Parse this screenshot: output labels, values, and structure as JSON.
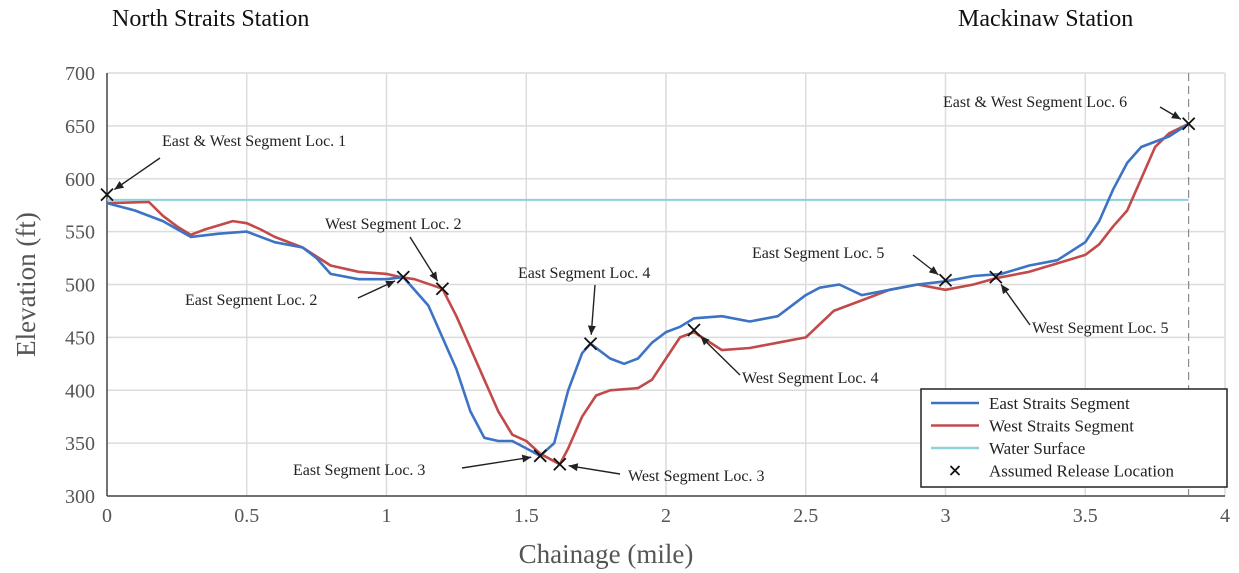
{
  "stations": {
    "left": "North Straits Station",
    "right": "Mackinaw Station"
  },
  "chart_data": {
    "type": "line",
    "xlabel": "Chainage (mile)",
    "ylabel": "Elevation (ft)",
    "xlim": [
      0,
      4
    ],
    "ylim": [
      300,
      700
    ],
    "xticks": [
      "0",
      "0.5",
      "1",
      "1.5",
      "2",
      "2.5",
      "3",
      "3.5",
      "4"
    ],
    "yticks": [
      "300",
      "350",
      "400",
      "450",
      "500",
      "550",
      "600",
      "650",
      "700"
    ],
    "grid": true,
    "legend_position": "bottom-right",
    "series": [
      {
        "name": "East Straits Segment",
        "color": "#3c73c4",
        "x": [
          0,
          0.1,
          0.2,
          0.3,
          0.4,
          0.5,
          0.6,
          0.7,
          0.75,
          0.8,
          0.9,
          1.0,
          1.06,
          1.15,
          1.25,
          1.3,
          1.35,
          1.4,
          1.45,
          1.5,
          1.55,
          1.6,
          1.65,
          1.7,
          1.73,
          1.8,
          1.85,
          1.9,
          1.95,
          2.0,
          2.05,
          2.1,
          2.2,
          2.3,
          2.4,
          2.5,
          2.55,
          2.62,
          2.7,
          2.8,
          2.9,
          3.0,
          3.1,
          3.2,
          3.3,
          3.4,
          3.5,
          3.55,
          3.6,
          3.65,
          3.7,
          3.8,
          3.87
        ],
        "y": [
          577,
          570,
          560,
          545,
          548,
          550,
          540,
          535,
          525,
          510,
          505,
          505,
          507,
          480,
          420,
          380,
          355,
          352,
          352,
          345,
          338,
          350,
          400,
          435,
          444,
          430,
          425,
          430,
          445,
          455,
          460,
          468,
          470,
          465,
          470,
          490,
          497,
          500,
          490,
          495,
          500,
          503,
          508,
          510,
          518,
          523,
          540,
          560,
          590,
          615,
          630,
          640,
          652
        ]
      },
      {
        "name": "West Straits Segment",
        "color": "#c24a4a",
        "x": [
          0,
          0.15,
          0.2,
          0.25,
          0.3,
          0.35,
          0.45,
          0.5,
          0.55,
          0.6,
          0.7,
          0.8,
          0.9,
          1.0,
          1.05,
          1.1,
          1.2,
          1.25,
          1.3,
          1.35,
          1.4,
          1.45,
          1.5,
          1.55,
          1.62,
          1.65,
          1.7,
          1.75,
          1.8,
          1.9,
          1.95,
          2.0,
          2.05,
          2.1,
          2.2,
          2.3,
          2.4,
          2.5,
          2.6,
          2.7,
          2.8,
          2.9,
          3.0,
          3.1,
          3.18,
          3.3,
          3.4,
          3.5,
          3.55,
          3.6,
          3.65,
          3.7,
          3.75,
          3.8,
          3.87
        ],
        "y": [
          577,
          578,
          565,
          555,
          547,
          552,
          560,
          558,
          552,
          545,
          535,
          518,
          512,
          510,
          507,
          505,
          496,
          470,
          440,
          410,
          380,
          358,
          352,
          340,
          330,
          345,
          375,
          395,
          400,
          402,
          410,
          430,
          450,
          455,
          438,
          440,
          445,
          450,
          475,
          485,
          495,
          500,
          495,
          500,
          506,
          512,
          520,
          528,
          538,
          555,
          570,
          600,
          630,
          643,
          652
        ]
      },
      {
        "name": "Water Surface",
        "color": "#8fd1d9",
        "x": [
          0,
          3.87
        ],
        "y": [
          580,
          580
        ]
      }
    ],
    "release_points": {
      "name": "Assumed Release Location",
      "points": [
        {
          "x": 0,
          "y": 585
        },
        {
          "x": 1.06,
          "y": 507
        },
        {
          "x": 1.2,
          "y": 496
        },
        {
          "x": 1.55,
          "y": 338
        },
        {
          "x": 1.62,
          "y": 330
        },
        {
          "x": 1.73,
          "y": 444
        },
        {
          "x": 2.1,
          "y": 457
        },
        {
          "x": 3.0,
          "y": 504
        },
        {
          "x": 3.18,
          "y": 507
        },
        {
          "x": 3.87,
          "y": 652
        }
      ]
    },
    "annotations": [
      {
        "text": "East & West Segment Loc. 1",
        "x": 0,
        "y": 585
      },
      {
        "text": "West Segment Loc. 2",
        "x": 1.2,
        "y": 496
      },
      {
        "text": "East Segment Loc. 2",
        "x": 1.06,
        "y": 507
      },
      {
        "text": "East Segment Loc. 4",
        "x": 1.73,
        "y": 444
      },
      {
        "text": "East Segment Loc. 3",
        "x": 1.55,
        "y": 338
      },
      {
        "text": "West Segment Loc. 3",
        "x": 1.62,
        "y": 330
      },
      {
        "text": "West Segment Loc. 4",
        "x": 2.1,
        "y": 457
      },
      {
        "text": "East Segment Loc. 5",
        "x": 3.0,
        "y": 504
      },
      {
        "text": "West Segment Loc. 5",
        "x": 3.18,
        "y": 507
      },
      {
        "text": "East & West Segment Loc. 6",
        "x": 3.87,
        "y": 652
      }
    ]
  }
}
